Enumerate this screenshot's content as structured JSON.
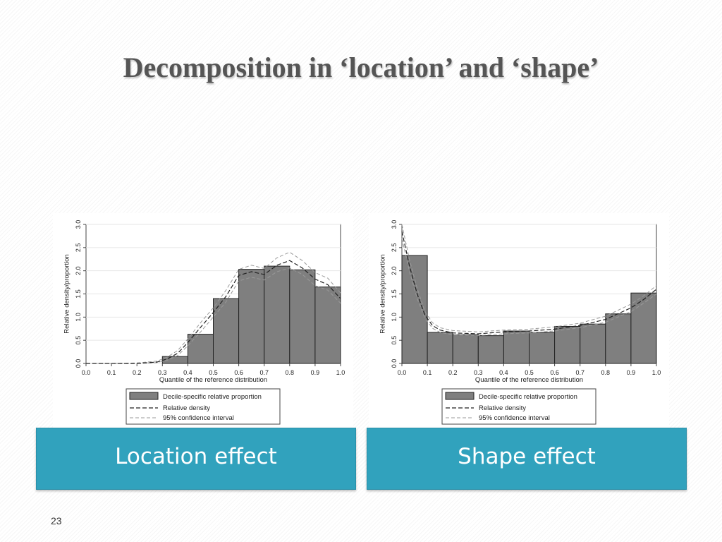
{
  "slide": {
    "title": "Decomposition in ‘location’ and ‘shape’",
    "page_number": "23"
  },
  "captions": {
    "left": "Location effect",
    "right": "Shape effect"
  },
  "colors": {
    "caption_bg": "#31a2bd",
    "bar_fill": "#7f7f7f",
    "density_line": "#222222",
    "ci_line": "#999999"
  },
  "chart_data": [
    {
      "type": "bar",
      "xlabel": "Quantile of the reference distribution",
      "ylabel": "Relative density/proportion",
      "xlim": [
        0,
        1
      ],
      "ylim": [
        0,
        3
      ],
      "x_ticks": [
        "0.0",
        "0.1",
        "0.2",
        "0.3",
        "0.4",
        "0.5",
        "0.6",
        "0.7",
        "0.8",
        "0.9",
        "1.0"
      ],
      "y_ticks": [
        "0.0",
        "0.5",
        "1.0",
        "1.5",
        "2.0",
        "2.5",
        "3.0"
      ],
      "legend": {
        "position": "bottom",
        "entries": [
          "Decile-specific relative proportion",
          "Relative density",
          "95% confidence interval"
        ]
      },
      "bins": [
        {
          "from": 0.3,
          "to": 0.4,
          "value": 0.15
        },
        {
          "from": 0.4,
          "to": 0.5,
          "value": 0.63
        },
        {
          "from": 0.5,
          "to": 0.6,
          "value": 1.4
        },
        {
          "from": 0.6,
          "to": 0.7,
          "value": 2.03
        },
        {
          "from": 0.7,
          "to": 0.8,
          "value": 2.1
        },
        {
          "from": 0.8,
          "to": 0.9,
          "value": 2.02
        },
        {
          "from": 0.9,
          "to": 1.0,
          "value": 1.65
        }
      ],
      "density": {
        "x": [
          0,
          0.1,
          0.2,
          0.28,
          0.32,
          0.36,
          0.4,
          0.45,
          0.5,
          0.55,
          0.6,
          0.65,
          0.7,
          0.75,
          0.8,
          0.85,
          0.9,
          0.95,
          1.0
        ],
        "y": [
          0,
          0,
          0,
          0.03,
          0.1,
          0.22,
          0.45,
          0.78,
          1.1,
          1.45,
          1.9,
          1.98,
          1.92,
          2.12,
          2.22,
          2.06,
          1.82,
          1.7,
          1.4
        ]
      },
      "ci_lower": {
        "x": [
          0,
          0.1,
          0.2,
          0.28,
          0.32,
          0.36,
          0.4,
          0.45,
          0.5,
          0.55,
          0.6,
          0.65,
          0.7,
          0.75,
          0.8,
          0.85,
          0.9,
          0.95,
          1.0
        ],
        "y": [
          0,
          0,
          0,
          0.02,
          0.07,
          0.17,
          0.38,
          0.68,
          1.0,
          1.33,
          1.78,
          1.86,
          1.8,
          1.98,
          2.06,
          1.92,
          1.68,
          1.58,
          1.3
        ]
      },
      "ci_upper": {
        "x": [
          0,
          0.1,
          0.2,
          0.28,
          0.32,
          0.36,
          0.4,
          0.45,
          0.5,
          0.55,
          0.6,
          0.65,
          0.7,
          0.75,
          0.8,
          0.85,
          0.9,
          0.95,
          1.0
        ],
        "y": [
          0,
          0,
          0.01,
          0.05,
          0.14,
          0.28,
          0.53,
          0.88,
          1.2,
          1.58,
          2.03,
          2.12,
          2.05,
          2.28,
          2.4,
          2.22,
          1.96,
          1.84,
          1.52
        ]
      }
    },
    {
      "type": "bar",
      "xlabel": "Quantile of the reference distribution",
      "ylabel": "Relative density/proportion",
      "xlim": [
        0,
        1
      ],
      "ylim": [
        0,
        3
      ],
      "x_ticks": [
        "0.0",
        "0.1",
        "0.2",
        "0.3",
        "0.4",
        "0.5",
        "0.6",
        "0.7",
        "0.8",
        "0.9",
        "1.0"
      ],
      "y_ticks": [
        "0.0",
        "0.5",
        "1.0",
        "1.5",
        "2.0",
        "2.5",
        "3.0"
      ],
      "legend": {
        "position": "bottom",
        "entries": [
          "Decile-specific relative proportion",
          "Relative density",
          "95% confidence interval"
        ]
      },
      "bins": [
        {
          "from": 0.0,
          "to": 0.1,
          "value": 2.33
        },
        {
          "from": 0.1,
          "to": 0.2,
          "value": 0.67
        },
        {
          "from": 0.2,
          "to": 0.3,
          "value": 0.62
        },
        {
          "from": 0.3,
          "to": 0.4,
          "value": 0.6
        },
        {
          "from": 0.4,
          "to": 0.5,
          "value": 0.7
        },
        {
          "from": 0.5,
          "to": 0.6,
          "value": 0.67
        },
        {
          "from": 0.6,
          "to": 0.7,
          "value": 0.8
        },
        {
          "from": 0.7,
          "to": 0.8,
          "value": 0.85
        },
        {
          "from": 0.8,
          "to": 0.9,
          "value": 1.07
        },
        {
          "from": 0.9,
          "to": 1.0,
          "value": 1.52
        }
      ],
      "density": {
        "x": [
          0,
          0.03,
          0.06,
          0.09,
          0.12,
          0.15,
          0.2,
          0.3,
          0.4,
          0.5,
          0.6,
          0.7,
          0.8,
          0.9,
          0.95,
          1.0
        ],
        "y": [
          2.85,
          2.1,
          1.5,
          1.05,
          0.82,
          0.72,
          0.66,
          0.64,
          0.68,
          0.7,
          0.74,
          0.82,
          0.95,
          1.2,
          1.38,
          1.6
        ]
      },
      "ci_lower": {
        "x": [
          0,
          0.03,
          0.06,
          0.09,
          0.12,
          0.15,
          0.2,
          0.3,
          0.4,
          0.5,
          0.6,
          0.7,
          0.8,
          0.9,
          0.95,
          1.0
        ],
        "y": [
          2.7,
          1.98,
          1.4,
          0.98,
          0.76,
          0.67,
          0.62,
          0.6,
          0.64,
          0.66,
          0.7,
          0.77,
          0.89,
          1.12,
          1.3,
          1.5
        ]
      },
      "ci_upper": {
        "x": [
          0,
          0.03,
          0.06,
          0.09,
          0.12,
          0.15,
          0.2,
          0.3,
          0.4,
          0.5,
          0.6,
          0.7,
          0.8,
          0.9,
          0.95,
          1.0
        ],
        "y": [
          3.0,
          2.24,
          1.62,
          1.13,
          0.88,
          0.77,
          0.71,
          0.68,
          0.72,
          0.74,
          0.79,
          0.87,
          1.02,
          1.28,
          1.46,
          1.68
        ]
      }
    }
  ]
}
